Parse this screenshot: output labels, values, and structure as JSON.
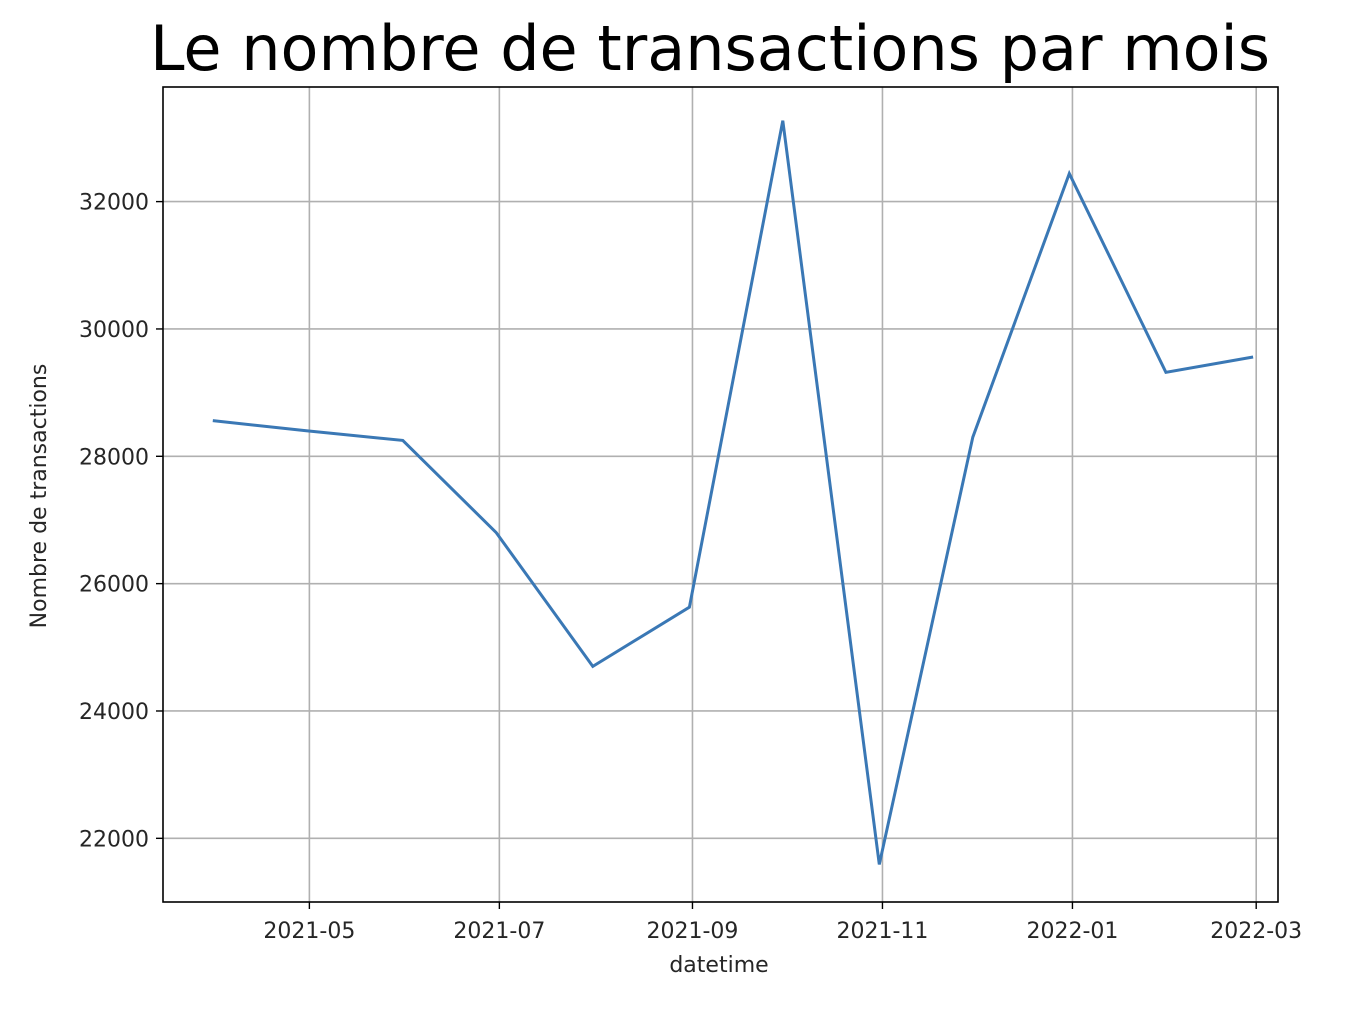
{
  "colors": {
    "line": "#3a78b5",
    "grid": "#b0b0b0",
    "frame": "#000000"
  },
  "chart_data": {
    "type": "line",
    "title": "Le nombre de transactions par mois",
    "xlabel": "datetime",
    "ylabel": "Nombre de transactions",
    "grid": true,
    "x_ticks": [
      {
        "date": "2021-05-01",
        "label": "2021-05"
      },
      {
        "date": "2021-07-01",
        "label": "2021-07"
      },
      {
        "date": "2021-09-01",
        "label": "2021-09"
      },
      {
        "date": "2021-11-01",
        "label": "2021-11"
      },
      {
        "date": "2022-01-01",
        "label": "2022-01"
      },
      {
        "date": "2022-03-01",
        "label": "2022-03"
      }
    ],
    "y_ticks": [
      22000,
      24000,
      26000,
      28000,
      30000,
      32000
    ],
    "xlim": [
      "2021-03-15",
      "2022-03-08"
    ],
    "ylim": [
      21000,
      33800
    ],
    "series": [
      {
        "x": [
          "2021-03-31",
          "2021-04-30",
          "2021-05-31",
          "2021-06-30",
          "2021-07-31",
          "2021-08-31",
          "2021-09-30",
          "2021-10-31",
          "2021-11-30",
          "2021-12-31",
          "2022-01-31",
          "2022-02-28"
        ],
        "values": [
          28560,
          28400,
          28250,
          26800,
          24700,
          25630,
          33270,
          21590,
          28300,
          32440,
          29320,
          29560
        ]
      }
    ]
  }
}
